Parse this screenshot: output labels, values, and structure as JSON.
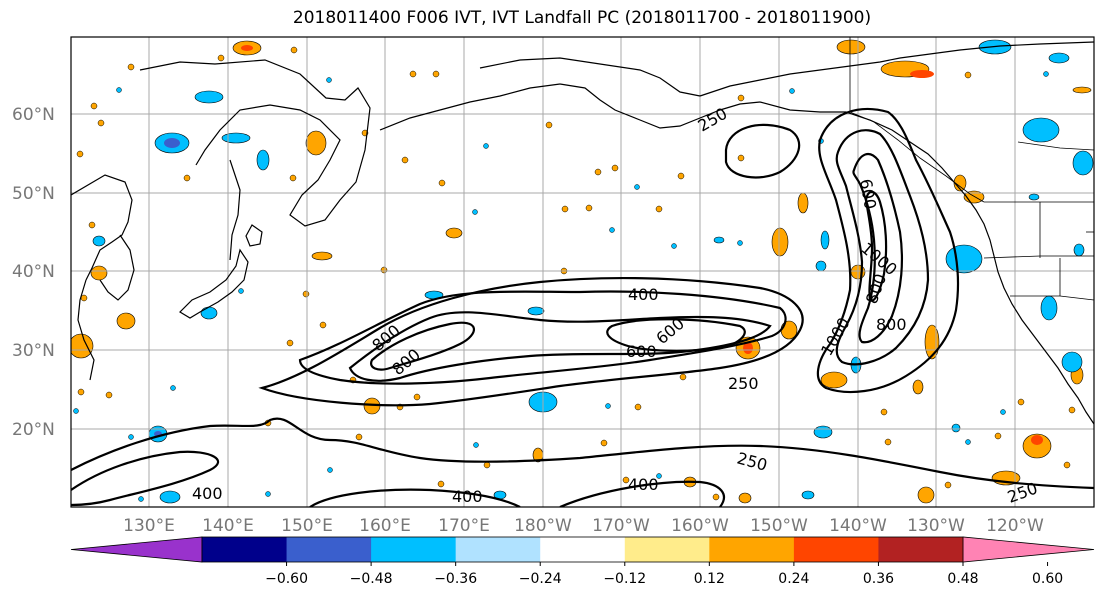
{
  "title": "2018011400 F006 IVT, IVT Landfall PC (2018011700 - 2018011900)",
  "lat_labels": [
    "60°N",
    "50°N",
    "40°N",
    "30°N",
    "20°N"
  ],
  "lon_labels": [
    "130°E",
    "140°E",
    "150°E",
    "160°E",
    "170°E",
    "180°W",
    "170°W",
    "160°W",
    "150°W",
    "140°W",
    "130°W",
    "120°W"
  ],
  "contour_labels": [
    "400",
    "600",
    "600",
    "800",
    "800",
    "250",
    "250",
    "400",
    "400",
    "400",
    "250",
    "600",
    "1000",
    "800",
    "800",
    "1000",
    "250"
  ],
  "colorbar": {
    "ticks": [
      "−0.60",
      "−0.48",
      "−0.36",
      "−0.24",
      "−0.12",
      "0.12",
      "0.24",
      "0.36",
      "0.48",
      "0.60"
    ],
    "colors": [
      "#9932cc",
      "#00008b",
      "#3a5fcd",
      "#00bfff",
      "#b0e2ff",
      "#ffffff",
      "#ffec8b",
      "#ffa500",
      "#ff4500",
      "#b22222",
      "#ff83b4"
    ]
  }
}
